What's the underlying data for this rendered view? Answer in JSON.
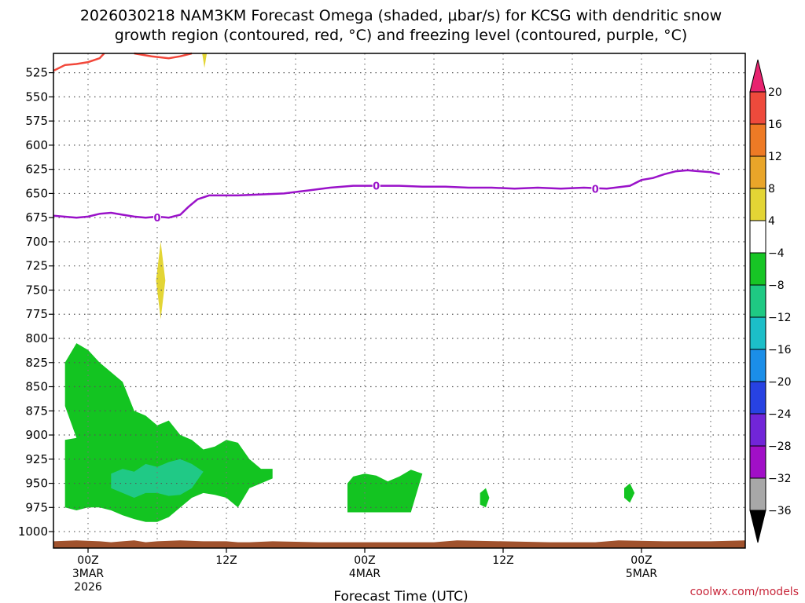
{
  "chart_data": {
    "type": "contour",
    "title": "2026030218 NAM3KM Forecast Omega (shaded, μbar/s) for KCSG with dendritic snow",
    "title_line2": "growth region (contoured, red, °C) and freezing level (contoured, purple, °C)",
    "xlabel": "Forecast Time (UTC)",
    "credit": "coolwx.com/models",
    "x_range_hours": [
      -3,
      57
    ],
    "y_range_mb": [
      505,
      1017
    ],
    "y_ticks": [
      "525",
      "550",
      "575",
      "600",
      "625",
      "650",
      "675",
      "700",
      "725",
      "750",
      "775",
      "800",
      "825",
      "850",
      "875",
      "900",
      "925",
      "950",
      "975",
      "1000"
    ],
    "x_ticks": [
      {
        "hour": 0,
        "label": "00Z",
        "date": "3MAR",
        "year": "2026"
      },
      {
        "hour": 12,
        "label": "12Z",
        "date": "",
        "year": ""
      },
      {
        "hour": 24,
        "label": "00Z",
        "date": "4MAR",
        "year": ""
      },
      {
        "hour": 36,
        "label": "12Z",
        "date": "",
        "year": ""
      },
      {
        "hour": 48,
        "label": "00Z",
        "date": "5MAR",
        "year": ""
      }
    ],
    "colorbar": [
      {
        "label": "20",
        "color": "#e8236f"
      },
      {
        "label": "16",
        "color": "#ee4a3c"
      },
      {
        "label": "12",
        "color": "#ee7a25"
      },
      {
        "label": "8",
        "color": "#e9a529"
      },
      {
        "label": "4",
        "color": "#e3d535"
      },
      {
        "label": "−4",
        "color": "#ffffff"
      },
      {
        "label": "−8",
        "color": "#17c525"
      },
      {
        "label": "−12",
        "color": "#1fc983"
      },
      {
        "label": "−16",
        "color": "#1cbec8"
      },
      {
        "label": "−20",
        "color": "#1b8ee8"
      },
      {
        "label": "−24",
        "color": "#2742e2"
      },
      {
        "label": "−28",
        "color": "#7125d8"
      },
      {
        "label": "−32",
        "color": "#a10fc7"
      },
      {
        "label": "−36",
        "color": "#a8a8a8"
      }
    ],
    "colorbar_end_low": "#000000",
    "colors": {
      "dgz_line": "#f2473a",
      "freezing_line": "#9a12c9",
      "ground": "#a0522d",
      "neg_weak": "#13c421",
      "neg_mod": "#20c986",
      "pos_weak": "#e3d535"
    },
    "freezing_level_labels": [
      {
        "hour": 6,
        "mb": 675,
        "label": "0"
      },
      {
        "hour": 25,
        "mb": 642,
        "label": "0"
      },
      {
        "hour": 44,
        "mb": 645,
        "label": "0"
      }
    ],
    "freezing_level": [
      [
        -3,
        673
      ],
      [
        -1,
        675
      ],
      [
        0,
        674
      ],
      [
        1,
        671
      ],
      [
        2,
        670
      ],
      [
        3,
        672
      ],
      [
        4,
        674
      ],
      [
        5,
        675
      ],
      [
        6,
        674
      ],
      [
        7,
        675
      ],
      [
        8,
        672
      ],
      [
        8.7,
        664
      ],
      [
        9.5,
        656
      ],
      [
        10.5,
        652
      ],
      [
        11.5,
        652
      ],
      [
        13,
        652
      ],
      [
        15,
        651
      ],
      [
        17,
        650
      ],
      [
        19,
        647
      ],
      [
        21,
        644
      ],
      [
        23,
        642
      ],
      [
        25,
        642
      ],
      [
        27,
        642
      ],
      [
        29,
        643
      ],
      [
        31,
        643
      ],
      [
        33,
        644
      ],
      [
        35,
        644
      ],
      [
        37,
        645
      ],
      [
        39,
        644
      ],
      [
        41,
        645
      ],
      [
        43,
        644
      ],
      [
        45,
        645
      ],
      [
        47,
        642
      ],
      [
        48,
        636
      ],
      [
        49,
        634
      ],
      [
        50,
        630
      ],
      [
        51,
        627
      ],
      [
        52,
        626
      ],
      [
        53,
        627
      ],
      [
        54,
        628
      ],
      [
        54.8,
        630
      ]
    ],
    "dgz_line_a": [
      [
        -3,
        523
      ],
      [
        -2,
        517
      ],
      [
        -1,
        516
      ],
      [
        0,
        514
      ],
      [
        1,
        510
      ],
      [
        1.4,
        505
      ]
    ],
    "dgz_line_b": [
      [
        4,
        505
      ],
      [
        5.5,
        508
      ],
      [
        7,
        510
      ],
      [
        8,
        508
      ],
      [
        9,
        505
      ]
    ],
    "omega_neg_weak_main": [
      [
        -2,
        825
      ],
      [
        -1,
        805
      ],
      [
        0,
        812
      ],
      [
        1,
        825
      ],
      [
        3,
        845
      ],
      [
        4,
        875
      ],
      [
        5,
        880
      ],
      [
        6,
        890
      ],
      [
        7,
        885
      ],
      [
        8,
        900
      ],
      [
        9,
        905
      ],
      [
        10,
        915
      ],
      [
        11,
        912
      ],
      [
        12,
        905
      ],
      [
        13,
        908
      ],
      [
        14,
        925
      ],
      [
        15,
        935
      ],
      [
        16,
        935
      ],
      [
        16,
        945
      ],
      [
        15,
        950
      ],
      [
        14,
        955
      ],
      [
        13,
        975
      ],
      [
        12,
        965
      ],
      [
        11,
        962
      ],
      [
        10,
        960
      ],
      [
        9,
        965
      ],
      [
        8,
        975
      ],
      [
        7,
        985
      ],
      [
        6,
        990
      ],
      [
        5,
        990
      ],
      [
        4,
        987
      ],
      [
        3,
        983
      ],
      [
        2,
        978
      ],
      [
        1,
        975
      ],
      [
        0,
        975
      ],
      [
        -1,
        978
      ],
      [
        -2,
        975
      ],
      [
        -2,
        905
      ],
      [
        -1,
        903
      ],
      [
        -2,
        870
      ]
    ],
    "omega_neg_mod": [
      [
        2,
        940
      ],
      [
        3,
        935
      ],
      [
        4,
        938
      ],
      [
        5,
        930
      ],
      [
        6,
        933
      ],
      [
        7,
        928
      ],
      [
        8,
        925
      ],
      [
        9,
        930
      ],
      [
        10,
        938
      ],
      [
        9,
        955
      ],
      [
        8,
        962
      ],
      [
        7,
        963
      ],
      [
        6,
        960
      ],
      [
        5,
        960
      ],
      [
        4,
        965
      ],
      [
        3,
        960
      ],
      [
        2,
        955
      ]
    ],
    "omega_neg_weak_2": [
      [
        22.5,
        950
      ],
      [
        23,
        943
      ],
      [
        24,
        940
      ],
      [
        25,
        942
      ],
      [
        26,
        948
      ],
      [
        27,
        943
      ],
      [
        28,
        936
      ],
      [
        29,
        940
      ],
      [
        28,
        980
      ],
      [
        22.5,
        980
      ]
    ],
    "omega_neg_weak_3": [
      [
        34,
        960
      ],
      [
        34.5,
        955
      ],
      [
        34.8,
        965
      ],
      [
        34.5,
        975
      ],
      [
        34,
        972
      ]
    ],
    "omega_neg_weak_4": [
      [
        46.5,
        955
      ],
      [
        47,
        950
      ],
      [
        47.4,
        960
      ],
      [
        47,
        970
      ],
      [
        46.5,
        965
      ]
    ],
    "omega_pos_weak_1": [
      [
        6.3,
        700
      ],
      [
        6.7,
        740
      ],
      [
        6.3,
        780
      ],
      [
        5.9,
        740
      ]
    ],
    "omega_pos_weak_2": [
      [
        9.9,
        505
      ],
      [
        10.1,
        520
      ],
      [
        10.3,
        505
      ]
    ],
    "ground_surface": [
      [
        -3,
        1010
      ],
      [
        -1,
        1009
      ],
      [
        1,
        1010
      ],
      [
        2,
        1011
      ],
      [
        3,
        1010
      ],
      [
        4,
        1009
      ],
      [
        5,
        1011
      ],
      [
        6,
        1010
      ],
      [
        8,
        1009
      ],
      [
        10,
        1010
      ],
      [
        12,
        1010
      ],
      [
        13,
        1011
      ],
      [
        14,
        1011
      ],
      [
        16,
        1010
      ],
      [
        20,
        1011
      ],
      [
        26,
        1011
      ],
      [
        30,
        1011
      ],
      [
        32,
        1009
      ],
      [
        36,
        1010
      ],
      [
        40,
        1011
      ],
      [
        44,
        1011
      ],
      [
        46,
        1009
      ],
      [
        50,
        1010
      ],
      [
        54,
        1010
      ],
      [
        57,
        1009
      ]
    ]
  }
}
